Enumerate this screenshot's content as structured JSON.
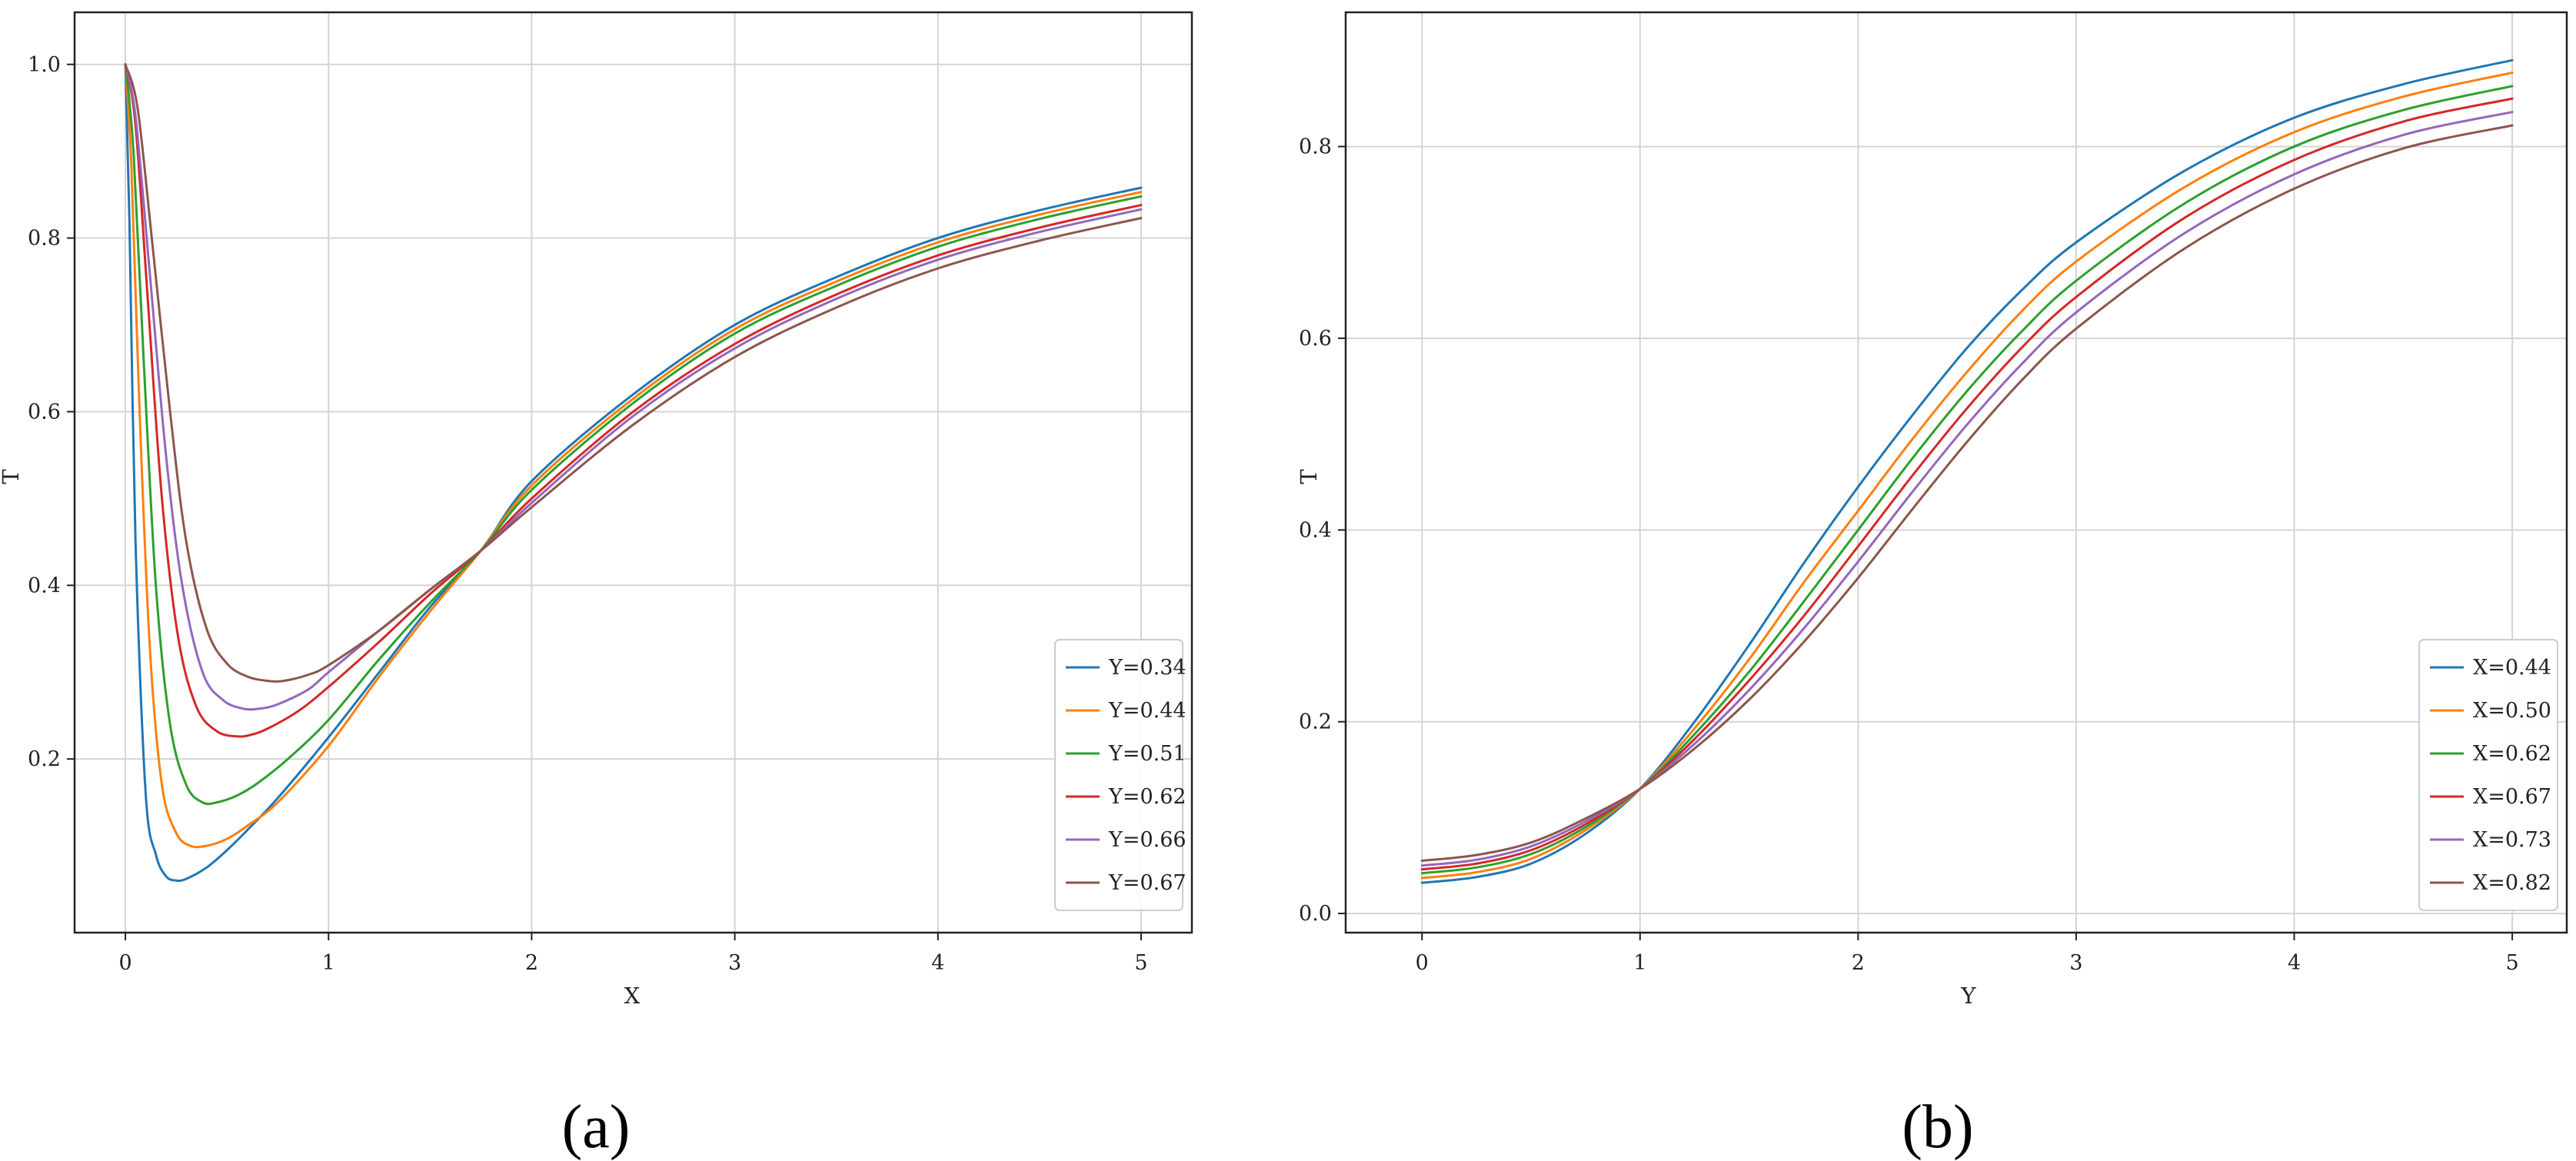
{
  "captions": [
    "(a)",
    "(b)"
  ],
  "chart_data": [
    {
      "type": "line",
      "panel": "(a)",
      "title": "",
      "xlabel": "X",
      "ylabel": "T",
      "xlim": [
        -0.25,
        5.25
      ],
      "ylim": [
        0.0,
        1.06
      ],
      "xticks": [
        0,
        1,
        2,
        3,
        4,
        5
      ],
      "xtick_labels": [
        "0",
        "1",
        "2",
        "3",
        "4",
        "5"
      ],
      "yticks": [
        0.2,
        0.4,
        0.6,
        0.8,
        1.0
      ],
      "ytick_labels": [
        "0.2",
        "0.4",
        "0.6",
        "0.8",
        "1.0"
      ],
      "grid": true,
      "legend_position": "bottom-right",
      "series": [
        {
          "name": "Y=0.34",
          "color": "#1f77b4",
          "x": [
            0,
            0.02,
            0.05,
            0.1,
            0.15,
            0.2,
            0.25,
            0.3,
            0.4,
            0.5,
            0.6,
            0.75,
            1.0,
            1.25,
            1.5,
            1.75,
            2.0,
            2.5,
            3.0,
            3.5,
            4.0,
            4.5,
            5.0
          ],
          "y": [
            1.0,
            0.82,
            0.45,
            0.16,
            0.09,
            0.065,
            0.06,
            0.062,
            0.075,
            0.095,
            0.118,
            0.155,
            0.225,
            0.3,
            0.375,
            0.44,
            0.52,
            0.62,
            0.7,
            0.755,
            0.8,
            0.832,
            0.858
          ]
        },
        {
          "name": "Y=0.44",
          "color": "#ff7f0e",
          "x": [
            0,
            0.03,
            0.07,
            0.12,
            0.18,
            0.25,
            0.32,
            0.4,
            0.5,
            0.6,
            0.75,
            1.0,
            1.25,
            1.5,
            1.75,
            2.0,
            2.5,
            3.0,
            3.5,
            4.0,
            4.5,
            5.0
          ],
          "y": [
            1.0,
            0.88,
            0.6,
            0.33,
            0.17,
            0.115,
            0.1,
            0.1,
            0.108,
            0.123,
            0.15,
            0.215,
            0.295,
            0.37,
            0.44,
            0.515,
            0.615,
            0.695,
            0.75,
            0.795,
            0.827,
            0.853
          ]
        },
        {
          "name": "Y=0.51",
          "color": "#2ca02c",
          "x": [
            0,
            0.04,
            0.09,
            0.15,
            0.22,
            0.3,
            0.38,
            0.45,
            0.55,
            0.65,
            0.8,
            1.0,
            1.25,
            1.5,
            1.75,
            2.0,
            2.5,
            3.0,
            3.5,
            4.0,
            4.5,
            5.0
          ],
          "y": [
            1.0,
            0.9,
            0.66,
            0.4,
            0.24,
            0.17,
            0.15,
            0.15,
            0.158,
            0.172,
            0.2,
            0.245,
            0.315,
            0.38,
            0.44,
            0.51,
            0.61,
            0.69,
            0.745,
            0.79,
            0.822,
            0.848
          ]
        },
        {
          "name": "Y=0.62",
          "color": "#d62728",
          "x": [
            0,
            0.05,
            0.11,
            0.18,
            0.26,
            0.35,
            0.45,
            0.55,
            0.62,
            0.7,
            0.85,
            1.0,
            1.25,
            1.5,
            1.75,
            2.0,
            2.5,
            3.0,
            3.5,
            4.0,
            4.5,
            5.0
          ],
          "y": [
            1.0,
            0.93,
            0.73,
            0.5,
            0.34,
            0.26,
            0.232,
            0.226,
            0.228,
            0.235,
            0.255,
            0.283,
            0.335,
            0.39,
            0.44,
            0.5,
            0.6,
            0.678,
            0.735,
            0.78,
            0.812,
            0.838
          ]
        },
        {
          "name": "Y=0.66",
          "color": "#9467bd",
          "x": [
            0,
            0.05,
            0.12,
            0.2,
            0.28,
            0.38,
            0.48,
            0.58,
            0.66,
            0.75,
            0.9,
            1.0,
            1.25,
            1.5,
            1.75,
            2.0,
            2.5,
            3.0,
            3.5,
            4.0,
            4.5,
            5.0
          ],
          "y": [
            1.0,
            0.94,
            0.76,
            0.55,
            0.4,
            0.3,
            0.268,
            0.258,
            0.258,
            0.263,
            0.28,
            0.3,
            0.348,
            0.395,
            0.44,
            0.495,
            0.595,
            0.673,
            0.73,
            0.775,
            0.807,
            0.833
          ]
        },
        {
          "name": "Y=0.67",
          "color": "#8c564b",
          "x": [
            0,
            0.06,
            0.13,
            0.22,
            0.3,
            0.4,
            0.5,
            0.6,
            0.7,
            0.78,
            0.9,
            1.0,
            1.25,
            1.5,
            1.75,
            2.0,
            2.5,
            3.0,
            3.5,
            4.0,
            4.5,
            5.0
          ],
          "y": [
            1.0,
            0.95,
            0.8,
            0.6,
            0.45,
            0.35,
            0.31,
            0.295,
            0.29,
            0.29,
            0.297,
            0.308,
            0.348,
            0.395,
            0.44,
            0.49,
            0.585,
            0.663,
            0.72,
            0.765,
            0.797,
            0.823
          ]
        }
      ]
    },
    {
      "type": "line",
      "panel": "(b)",
      "title": "",
      "xlabel": "Y",
      "ylabel": "T",
      "xlim": [
        -0.35,
        5.25
      ],
      "ylim": [
        -0.02,
        0.94
      ],
      "xticks": [
        0,
        1,
        2,
        3,
        4,
        5
      ],
      "xtick_labels": [
        "0",
        "1",
        "2",
        "3",
        "4",
        "5"
      ],
      "yticks": [
        0.0,
        0.2,
        0.4,
        0.6,
        0.8
      ],
      "ytick_labels": [
        "0.0",
        "0.2",
        "0.4",
        "0.6",
        "0.8"
      ],
      "grid": true,
      "legend_position": "bottom-right",
      "series": [
        {
          "name": "X=0.44",
          "color": "#1f77b4",
          "x": [
            0,
            0.25,
            0.5,
            0.75,
            1.0,
            1.25,
            1.5,
            1.75,
            2.0,
            2.25,
            2.5,
            2.75,
            3.0,
            3.5,
            4.0,
            4.5,
            5.0
          ],
          "y": [
            0.032,
            0.038,
            0.052,
            0.083,
            0.13,
            0.2,
            0.28,
            0.365,
            0.445,
            0.52,
            0.59,
            0.65,
            0.7,
            0.775,
            0.83,
            0.865,
            0.89
          ]
        },
        {
          "name": "X=0.50",
          "color": "#ff7f0e",
          "x": [
            0,
            0.25,
            0.5,
            0.75,
            1.0,
            1.25,
            1.5,
            1.75,
            2.0,
            2.25,
            2.5,
            2.75,
            3.0,
            3.5,
            4.0,
            4.5,
            5.0
          ],
          "y": [
            0.037,
            0.043,
            0.057,
            0.087,
            0.13,
            0.193,
            0.265,
            0.345,
            0.42,
            0.495,
            0.565,
            0.628,
            0.68,
            0.758,
            0.815,
            0.852,
            0.877
          ]
        },
        {
          "name": "X=0.62",
          "color": "#2ca02c",
          "x": [
            0,
            0.25,
            0.5,
            0.75,
            1.0,
            1.25,
            1.5,
            1.75,
            2.0,
            2.25,
            2.5,
            2.75,
            3.0,
            3.5,
            4.0,
            4.5,
            5.0
          ],
          "y": [
            0.042,
            0.048,
            0.062,
            0.09,
            0.13,
            0.187,
            0.252,
            0.325,
            0.4,
            0.475,
            0.545,
            0.607,
            0.66,
            0.741,
            0.8,
            0.838,
            0.863
          ]
        },
        {
          "name": "X=0.67",
          "color": "#d62728",
          "x": [
            0,
            0.25,
            0.5,
            0.75,
            1.0,
            1.25,
            1.5,
            1.75,
            2.0,
            2.25,
            2.5,
            2.75,
            3.0,
            3.5,
            4.0,
            4.5,
            5.0
          ],
          "y": [
            0.046,
            0.052,
            0.066,
            0.093,
            0.13,
            0.182,
            0.243,
            0.31,
            0.383,
            0.457,
            0.527,
            0.59,
            0.643,
            0.726,
            0.786,
            0.826,
            0.85
          ]
        },
        {
          "name": "X=0.73",
          "color": "#9467bd",
          "x": [
            0,
            0.25,
            0.5,
            0.75,
            1.0,
            1.25,
            1.5,
            1.75,
            2.0,
            2.25,
            2.5,
            2.75,
            3.0,
            3.5,
            4.0,
            4.5,
            5.0
          ],
          "y": [
            0.05,
            0.056,
            0.07,
            0.096,
            0.13,
            0.177,
            0.233,
            0.297,
            0.367,
            0.44,
            0.51,
            0.573,
            0.627,
            0.71,
            0.771,
            0.812,
            0.836
          ]
        },
        {
          "name": "X=0.82",
          "color": "#8c564b",
          "x": [
            0,
            0.25,
            0.5,
            0.75,
            1.0,
            1.25,
            1.5,
            1.75,
            2.0,
            2.25,
            2.5,
            2.75,
            3.0,
            3.5,
            4.0,
            4.5,
            5.0
          ],
          "y": [
            0.055,
            0.061,
            0.074,
            0.099,
            0.13,
            0.172,
            0.223,
            0.283,
            0.35,
            0.422,
            0.492,
            0.556,
            0.61,
            0.694,
            0.756,
            0.798,
            0.822
          ]
        }
      ]
    }
  ]
}
